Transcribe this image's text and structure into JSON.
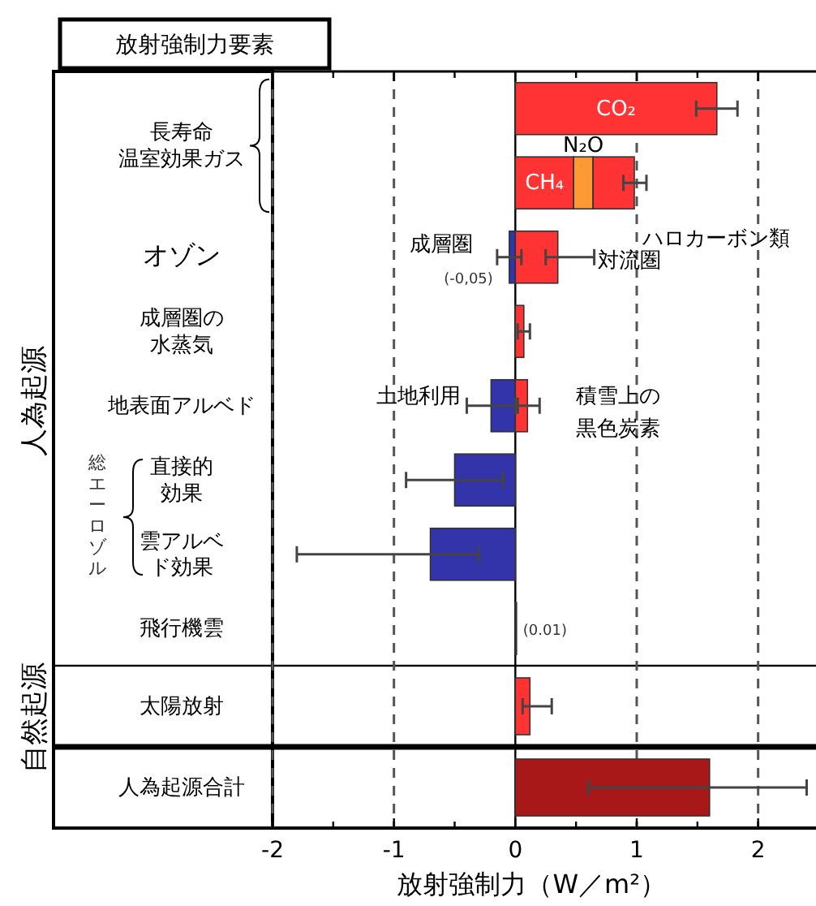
{
  "chart_data": {
    "type": "bar",
    "orientation": "horizontal",
    "stacked": true,
    "title": "放射強制力要素",
    "xlabel": "放射強制力（W／m²）",
    "categories": [
      "長寿命温室効果ガス",
      null,
      "オゾン",
      "成層圏の水蒸気",
      "地表面アルベド",
      "直接的効果",
      "雲アルベド効果",
      "飛行機雲",
      "太陽放射",
      "人為起源合計"
    ],
    "xlim": [
      -2,
      2.45
    ],
    "xticks": [
      -2,
      {
        "value": -1.5,
        "label": null
      },
      -1,
      {
        "value": -0.5,
        "label": null
      },
      0,
      {
        "value": 0.5,
        "label": null
      },
      1,
      {
        "value": 1.5,
        "label": null
      },
      2
    ],
    "grid": "x",
    "annotations": [
      "人為起源",
      "自然起源",
      "総エーロゾル"
    ],
    "series": [
      {
        "name": "CO₂",
        "color": "#ff3333",
        "values": [
          1.66,
          null,
          null,
          null,
          null,
          null,
          null,
          null,
          null,
          null
        ],
        "errors": [
          [
            1.49,
            1.83
          ],
          null,
          null,
          null,
          null,
          null,
          null,
          null,
          null,
          null
        ]
      },
      {
        "name": "CH₄",
        "color": "#ff3333",
        "values": [
          null,
          0.48,
          null,
          null,
          null,
          null,
          null,
          null,
          null,
          null
        ]
      },
      {
        "name": "N₂O",
        "color": "#ff9933",
        "values": [
          null,
          0.16,
          null,
          null,
          null,
          null,
          null,
          null,
          null,
          null
        ]
      },
      {
        "name": "ハロカーボン類",
        "color": "#ff3333",
        "values": [
          null,
          0.34,
          null,
          null,
          null,
          null,
          null,
          null,
          null,
          null
        ],
        "errors": [
          null,
          [
            0.89,
            1.08
          ],
          null,
          null,
          null,
          null,
          null,
          null,
          null,
          null
        ]
      },
      {
        "name": "成層圏",
        "color": "#3333aa",
        "values": [
          null,
          null,
          -0.05,
          null,
          null,
          null,
          null,
          null,
          null,
          null
        ],
        "errors": [
          null,
          null,
          [
            -0.15,
            0.05
          ],
          null,
          null,
          null,
          null,
          null,
          null,
          null
        ],
        "value_labels": [
          null,
          null,
          "(-0,05)",
          null,
          null,
          null,
          null,
          null,
          null,
          null
        ]
      },
      {
        "name": "対流圏",
        "color": "#ff3333",
        "values": [
          null,
          null,
          0.35,
          null,
          null,
          null,
          null,
          null,
          null,
          null
        ],
        "errors": [
          null,
          null,
          [
            0.25,
            0.65
          ],
          null,
          null,
          null,
          null,
          null,
          null,
          null
        ]
      },
      {
        "color": "#ff3333",
        "values": [
          null,
          null,
          null,
          0.07,
          null,
          null,
          null,
          null,
          null,
          null
        ],
        "errors": [
          null,
          null,
          null,
          [
            0.02,
            0.12
          ],
          null,
          null,
          null,
          null,
          null,
          null
        ]
      },
      {
        "name": "土地利用",
        "color": "#3333aa",
        "values": [
          null,
          null,
          null,
          null,
          -0.2,
          null,
          null,
          null,
          null,
          null
        ],
        "errors": [
          null,
          null,
          null,
          null,
          [
            -0.4,
            0
          ],
          null,
          null,
          null,
          null,
          null
        ]
      },
      {
        "name": "積雪上の黒色炭素",
        "color": "#ff3333",
        "values": [
          null,
          null,
          null,
          null,
          0.1,
          null,
          null,
          null,
          null,
          null
        ],
        "errors": [
          null,
          null,
          null,
          null,
          [
            0.02,
            0.2
          ],
          null,
          null,
          null,
          null,
          null
        ]
      },
      {
        "color": "#3333aa",
        "values": [
          null,
          null,
          null,
          null,
          null,
          -0.5,
          null,
          null,
          null,
          null
        ],
        "errors": [
          null,
          null,
          null,
          null,
          null,
          [
            -0.9,
            -0.1
          ],
          null,
          null,
          null,
          null
        ]
      },
      {
        "color": "#3333aa",
        "values": [
          null,
          null,
          null,
          null,
          null,
          null,
          -0.7,
          null,
          null,
          null
        ],
        "errors": [
          null,
          null,
          null,
          null,
          null,
          null,
          [
            -1.8,
            -0.3
          ],
          null,
          null,
          null
        ]
      },
      {
        "color": "#ff3333",
        "values": [
          null,
          null,
          null,
          null,
          null,
          null,
          null,
          0.01,
          null,
          null
        ],
        "value_labels": [
          null,
          null,
          null,
          null,
          null,
          null,
          null,
          "(0.01)",
          null,
          null
        ]
      },
      {
        "color": "#ff3333",
        "values": [
          null,
          null,
          null,
          null,
          null,
          null,
          null,
          null,
          0.12,
          null
        ],
        "errors": [
          null,
          null,
          null,
          null,
          null,
          null,
          null,
          null,
          [
            0.06,
            0.3
          ],
          null
        ]
      },
      {
        "color": "#a81818",
        "values": [
          null,
          null,
          null,
          null,
          null,
          null,
          null,
          null,
          null,
          1.6
        ],
        "errors": [
          null,
          null,
          null,
          null,
          null,
          null,
          null,
          null,
          null,
          [
            0.6,
            2.4
          ]
        ]
      }
    ]
  }
}
